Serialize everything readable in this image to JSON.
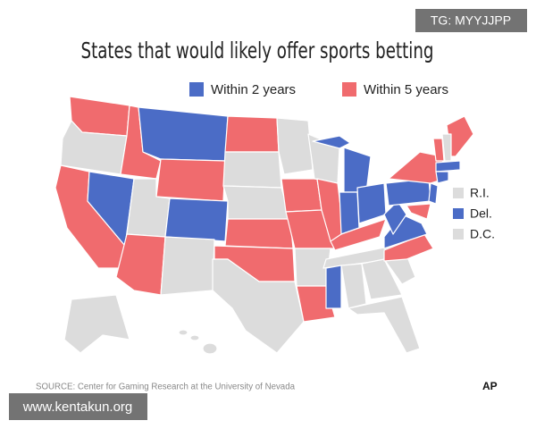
{
  "title": "States that would likely offer sports betting",
  "legend": [
    {
      "label": "Within 2 years",
      "color": "#4b6cc6"
    },
    {
      "label": "Within 5 years",
      "color": "#f06b6e"
    }
  ],
  "small_states": [
    "R.I.",
    "Del.",
    "D.C."
  ],
  "source": "SOURCE: Center for Gaming Research at the University of Nevada",
  "logo": "AP",
  "watermarks": [
    "TG: MYYJJPP",
    "www.kentakun.org"
  ]
}
